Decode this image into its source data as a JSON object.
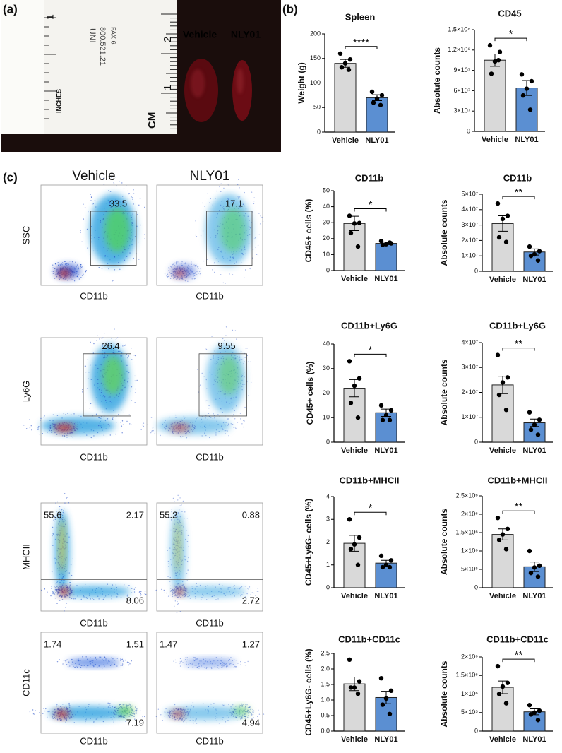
{
  "panel_labels": [
    "(a)",
    "(b)",
    "(c)"
  ],
  "photo": {
    "labels": [
      "Vehicle",
      "NLY01"
    ],
    "ruler_text": [
      "INCHES",
      "CM",
      "1",
      "2",
      "1",
      "UNI",
      "800.521.21",
      "FAX 6"
    ]
  },
  "flow": {
    "columns": [
      "Vehicle",
      "NLY01"
    ],
    "rows": [
      {
        "y_label": "SSC",
        "x_label": "CD11b",
        "gates": [
          [
            "33.5"
          ],
          [
            "17.1"
          ]
        ]
      },
      {
        "y_label": "Ly6G",
        "x_label": "CD11b",
        "gates": [
          [
            "26.4"
          ],
          [
            "9.55"
          ]
        ]
      },
      {
        "y_label": "MHCII",
        "x_label": "CD11b",
        "gates": [
          [
            "55.6",
            "2.17",
            "8.06"
          ],
          [
            "55.2",
            "0.88",
            "2.72"
          ]
        ]
      },
      {
        "y_label": "CD11c",
        "x_label": "CD11b",
        "gates": [
          [
            "1.74",
            "1.51",
            "7.19"
          ],
          [
            "1.47",
            "1.27",
            "4.94"
          ]
        ]
      }
    ]
  },
  "chart_data": [
    {
      "type": "bar",
      "title": "Spleen",
      "y_label": "Weight (g)",
      "categories": [
        "Vehicle",
        "NLY01"
      ],
      "colors": [
        "#d9d9d9",
        "#5b8fd2"
      ],
      "values": [
        140,
        70
      ],
      "errors": [
        8,
        6
      ],
      "points": [
        [
          160,
          148,
          140,
          132,
          127
        ],
        [
          82,
          75,
          68,
          60,
          55
        ]
      ],
      "ylim": [
        0,
        200
      ],
      "yticks": [
        0,
        50,
        100,
        150,
        200
      ],
      "significance": "****"
    },
    {
      "type": "bar",
      "title": "CD45",
      "y_label": "Absolute counts",
      "categories": [
        "Vehicle",
        "NLY01"
      ],
      "colors": [
        "#d9d9d9",
        "#5b8fd2"
      ],
      "values": [
        105000000,
        64000000
      ],
      "errors": [
        9000000,
        11000000
      ],
      "points": [
        [
          127000000,
          117000000,
          103000000,
          85000000,
          105000000
        ],
        [
          84000000,
          74000000,
          63000000,
          53000000,
          32000000
        ]
      ],
      "ylim": [
        0,
        150000000
      ],
      "yticks": [
        0,
        {
          "value": 30000000,
          "label": "3×10⁷"
        },
        {
          "value": 60000000,
          "label": "6×10⁷"
        },
        {
          "value": 90000000,
          "label": "9×10⁷"
        },
        {
          "value": 120000000,
          "label": "1.2×10⁸"
        },
        {
          "value": 150000000,
          "label": "1.5×10⁸"
        }
      ],
      "significance": "*"
    },
    {
      "type": "bar",
      "title": "CD11b",
      "y_label": "CD45+ cells (%)",
      "categories": [
        "Vehicle",
        "NLY01"
      ],
      "colors": [
        "#d9d9d9",
        "#5b8fd2"
      ],
      "values": [
        29.5,
        17
      ],
      "errors": [
        4.5,
        0.8
      ],
      "points": [
        [
          34.3,
          29.8,
          29.5,
          23.5,
          15
        ],
        [
          18.5,
          17,
          16.5,
          16,
          17.5
        ]
      ],
      "ylim": [
        0,
        50
      ],
      "yticks": [
        0,
        10,
        20,
        30,
        40,
        50
      ],
      "significance": "*"
    },
    {
      "type": "bar",
      "title": "CD11b",
      "y_label": "Absolute counts",
      "categories": [
        "Vehicle",
        "NLY01"
      ],
      "colors": [
        "#d9d9d9",
        "#5b8fd2"
      ],
      "values": [
        31000000,
        12500000
      ],
      "errors": [
        5000000,
        2000000
      ],
      "points": [
        [
          44000000,
          36000000,
          34000000,
          22000000,
          19000000
        ],
        [
          16000000,
          13000000,
          11000000,
          10000000,
          7000000
        ]
      ],
      "ylim": [
        0,
        50000000
      ],
      "yticks": [
        0,
        {
          "value": 10000000,
          "label": "1×10⁷"
        },
        {
          "value": 20000000,
          "label": "2×10⁷"
        },
        {
          "value": 30000000,
          "label": "3×10⁷"
        },
        {
          "value": 40000000,
          "label": "4×10⁷"
        },
        {
          "value": 50000000,
          "label": "5×10⁷"
        }
      ],
      "significance": "**"
    },
    {
      "type": "bar",
      "title": "CD11b+Ly6G",
      "y_label": "CD45+ cells (%)",
      "categories": [
        "Vehicle",
        "NLY01"
      ],
      "colors": [
        "#d9d9d9",
        "#5b8fd2"
      ],
      "values": [
        22,
        12
      ],
      "errors": [
        3.5,
        1.5
      ],
      "points": [
        [
          33,
          26,
          23,
          16,
          10
        ],
        [
          15,
          13,
          11,
          9,
          9
        ]
      ],
      "ylim": [
        0,
        40
      ],
      "yticks": [
        0,
        10,
        20,
        30,
        40
      ],
      "significance": "*"
    },
    {
      "type": "bar",
      "title": "CD11b+Ly6G",
      "y_label": "Absolute counts",
      "categories": [
        "Vehicle",
        "NLY01"
      ],
      "colors": [
        "#d9d9d9",
        "#5b8fd2"
      ],
      "values": [
        23000000,
        7800000
      ],
      "errors": [
        3500000,
        1500000
      ],
      "points": [
        [
          35000000,
          26000000,
          24000000,
          19000000,
          13000000
        ],
        [
          12000000,
          9000000,
          7000000,
          5000000,
          3000000
        ]
      ],
      "ylim": [
        0,
        40000000
      ],
      "yticks": [
        0,
        {
          "value": 10000000,
          "label": "1×10⁷"
        },
        {
          "value": 20000000,
          "label": "2×10⁷"
        },
        {
          "value": 30000000,
          "label": "3×10⁷"
        },
        {
          "value": 40000000,
          "label": "4×10⁷"
        }
      ],
      "significance": "**"
    },
    {
      "type": "bar",
      "title": "CD11b+MHCII",
      "y_label": "CD45+Ly6G- cells (%)",
      "categories": [
        "Vehicle",
        "NLY01"
      ],
      "colors": [
        "#d9d9d9",
        "#5b8fd2"
      ],
      "values": [
        1.95,
        1.08
      ],
      "errors": [
        0.35,
        0.12
      ],
      "points": [
        [
          3.0,
          2.2,
          1.9,
          1.7,
          1.0
        ],
        [
          1.4,
          1.2,
          1.0,
          0.9,
          0.9
        ]
      ],
      "ylim": [
        0,
        4
      ],
      "yticks": [
        0,
        1,
        2,
        3,
        4
      ],
      "significance": "*"
    },
    {
      "type": "bar",
      "title": "CD11b+MHCII",
      "y_label": "Absolute counts",
      "categories": [
        "Vehicle",
        "NLY01"
      ],
      "colors": [
        "#d9d9d9",
        "#5b8fd2"
      ],
      "values": [
        1450000,
        570000
      ],
      "errors": [
        150000,
        130000
      ],
      "points": [
        [
          1900000,
          1600000,
          1450000,
          1300000,
          1050000
        ],
        [
          1000000,
          600000,
          550000,
          400000,
          300000
        ]
      ],
      "ylim": [
        0,
        2500000
      ],
      "yticks": [
        0,
        {
          "value": 500000,
          "label": "5×10⁵"
        },
        {
          "value": 1000000,
          "label": "1×10⁶"
        },
        {
          "value": 1500000,
          "label": "1.5×10⁶"
        },
        {
          "value": 2000000,
          "label": "2×10⁶"
        },
        {
          "value": 2500000,
          "label": "2.5×10⁶"
        }
      ],
      "significance": "**"
    },
    {
      "type": "bar",
      "title": "CD11b+CD11c",
      "y_label": "CD45+Ly6G- cells (%)",
      "categories": [
        "Vehicle",
        "NLY01"
      ],
      "colors": [
        "#d9d9d9",
        "#5b8fd2"
      ],
      "values": [
        1.52,
        1.08
      ],
      "errors": [
        0.22,
        0.2
      ],
      "points": [
        [
          2.3,
          1.6,
          1.4,
          1.4,
          1.2
        ],
        [
          1.7,
          1.3,
          1.05,
          0.85,
          0.55
        ]
      ],
      "ylim": [
        0,
        2.5
      ],
      "yticks": [
        {
          "value": 0,
          "label": "0.0"
        },
        0.5,
        {
          "value": 1,
          "label": "1.0"
        },
        1.5,
        {
          "value": 2,
          "label": "2.0"
        },
        2.5
      ]
    },
    {
      "type": "bar",
      "title": "CD11b+CD11c",
      "y_label": "Absolute counts",
      "categories": [
        "Vehicle",
        "NLY01"
      ],
      "colors": [
        "#d9d9d9",
        "#5b8fd2"
      ],
      "values": [
        1180000,
        520000
      ],
      "errors": [
        170000,
        80000
      ],
      "points": [
        [
          1750000,
          1300000,
          1200000,
          1000000,
          750000
        ],
        [
          700000,
          550000,
          500000,
          450000,
          300000
        ]
      ],
      "ylim": [
        0,
        2000000
      ],
      "yticks": [
        0,
        {
          "value": 500000,
          "label": "5×10⁵"
        },
        {
          "value": 1000000,
          "label": "1×10⁶"
        },
        {
          "value": 1500000,
          "label": "1.5×10⁶"
        },
        {
          "value": 2000000,
          "label": "2×10⁶"
        }
      ],
      "significance": "**"
    }
  ]
}
